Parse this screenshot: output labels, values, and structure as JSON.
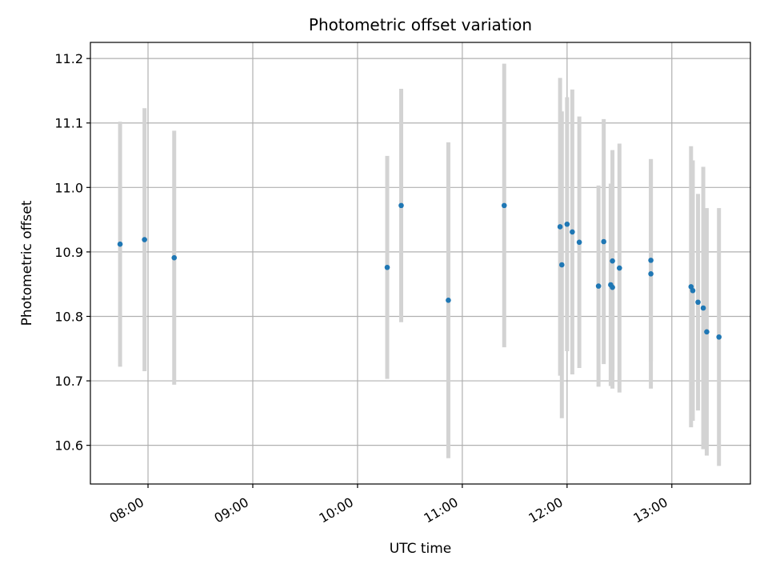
{
  "chart_data": {
    "type": "scatter",
    "title": "Photometric offset variation",
    "xlabel": "UTC time",
    "ylabel": "Photometric offset",
    "x_unit": "time",
    "xlim": [
      "07:27",
      "13:45"
    ],
    "ylim": [
      10.54,
      11.225
    ],
    "x_ticks": [
      "08:00",
      "09:00",
      "10:00",
      "11:00",
      "12:00",
      "13:00"
    ],
    "y_ticks": [
      10.6,
      10.7,
      10.8,
      10.9,
      11.0,
      11.1,
      11.2
    ],
    "grid": true,
    "colors": {
      "point": "#1f77b4",
      "errorbar": "#d3d3d3"
    },
    "points": [
      {
        "time": "07:44",
        "y": 10.912,
        "err": 0.19
      },
      {
        "time": "07:58",
        "y": 10.919,
        "err": 0.204
      },
      {
        "time": "08:15",
        "y": 10.891,
        "err": 0.197
      },
      {
        "time": "10:17",
        "y": 10.876,
        "err": 0.173
      },
      {
        "time": "10:25",
        "y": 10.972,
        "err": 0.181
      },
      {
        "time": "10:52",
        "y": 10.825,
        "err": 0.245
      },
      {
        "time": "11:24",
        "y": 10.972,
        "err": 0.22
      },
      {
        "time": "11:56",
        "y": 10.939,
        "err": 0.231
      },
      {
        "time": "11:57",
        "y": 10.88,
        "err": 0.238
      },
      {
        "time": "12:00",
        "y": 10.943,
        "err": 0.197
      },
      {
        "time": "12:03",
        "y": 10.931,
        "err": 0.221
      },
      {
        "time": "12:07",
        "y": 10.915,
        "err": 0.195
      },
      {
        "time": "12:18",
        "y": 10.847,
        "err": 0.156
      },
      {
        "time": "12:21",
        "y": 10.916,
        "err": 0.19
      },
      {
        "time": "12:25",
        "y": 10.849,
        "err": 0.157
      },
      {
        "time": "12:26",
        "y": 10.886,
        "err": 0.172
      },
      {
        "time": "12:26",
        "y": 10.845,
        "err": 0.157
      },
      {
        "time": "12:30",
        "y": 10.875,
        "err": 0.193
      },
      {
        "time": "12:48",
        "y": 10.887,
        "err": 0.157
      },
      {
        "time": "12:48",
        "y": 10.866,
        "err": 0.178
      },
      {
        "time": "13:11",
        "y": 10.846,
        "err": 0.218
      },
      {
        "time": "13:12",
        "y": 10.84,
        "err": 0.202
      },
      {
        "time": "13:15",
        "y": 10.822,
        "err": 0.168
      },
      {
        "time": "13:18",
        "y": 10.813,
        "err": 0.219
      },
      {
        "time": "13:20",
        "y": 10.776,
        "err": 0.192
      },
      {
        "time": "13:27",
        "y": 10.768,
        "err": 0.2
      }
    ]
  }
}
